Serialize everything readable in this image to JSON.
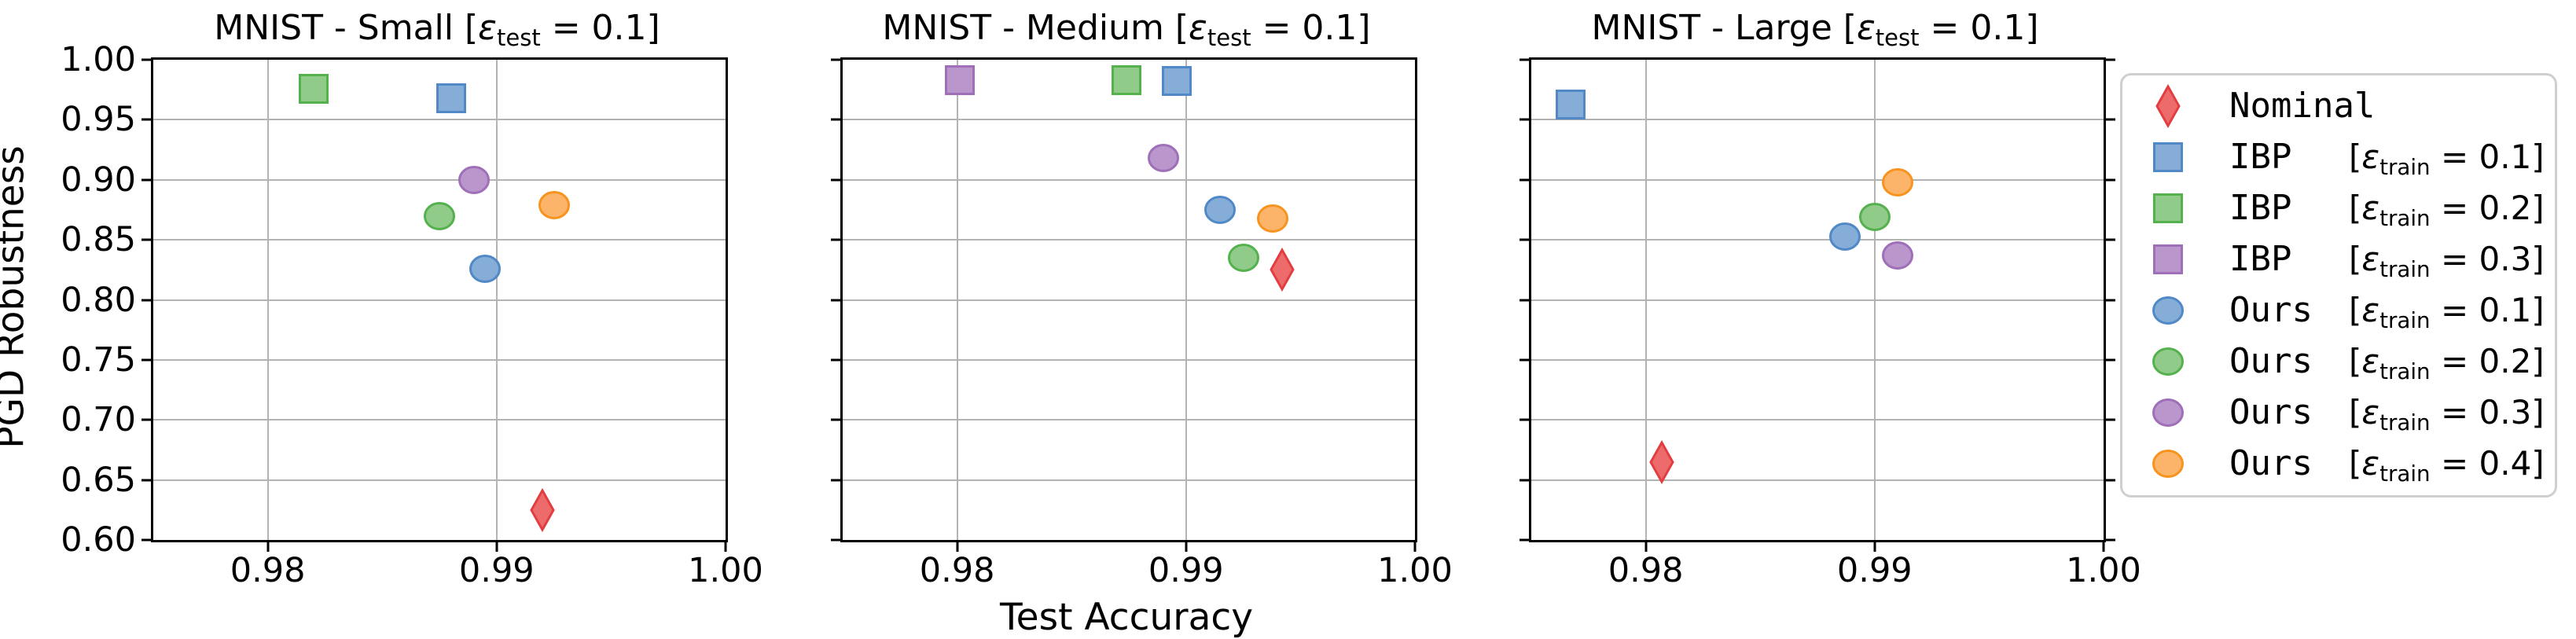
{
  "axes": {
    "xlabel": "Test Accuracy",
    "ylabel": "PGD Robustness"
  },
  "colors": {
    "red": {
      "fill": "#EE6B6C",
      "edge": "#E23E41"
    },
    "blue": {
      "fill": "#85ADD8",
      "edge": "#5089C5"
    },
    "green": {
      "fill": "#90CB8A",
      "edge": "#55B14E"
    },
    "purple": {
      "fill": "#B996CC",
      "edge": "#9F6FB8"
    },
    "orange": {
      "fill": "#FBB469",
      "edge": "#F7941F"
    },
    "grid": "#b3b3b3",
    "spine": "#000000",
    "legend_border": "#cfcfcf"
  },
  "legend": {
    "items": [
      {
        "name": "Nominal",
        "marker": "diamond",
        "color": "red",
        "bracket": {
          "open": "",
          "eps": "",
          "sub": "",
          "rest": ""
        }
      },
      {
        "name": "IBP",
        "marker": "square",
        "color": "blue",
        "bracket": {
          "open": "[",
          "eps": "ε",
          "sub": "train",
          "rest": " = 0.1]"
        }
      },
      {
        "name": "IBP",
        "marker": "square",
        "color": "green",
        "bracket": {
          "open": "[",
          "eps": "ε",
          "sub": "train",
          "rest": " = 0.2]"
        }
      },
      {
        "name": "IBP",
        "marker": "square",
        "color": "purple",
        "bracket": {
          "open": "[",
          "eps": "ε",
          "sub": "train",
          "rest": " = 0.3]"
        }
      },
      {
        "name": "Ours",
        "marker": "circle",
        "color": "blue",
        "bracket": {
          "open": "[",
          "eps": "ε",
          "sub": "train",
          "rest": " = 0.1]"
        }
      },
      {
        "name": "Ours",
        "marker": "circle",
        "color": "green",
        "bracket": {
          "open": "[",
          "eps": "ε",
          "sub": "train",
          "rest": " = 0.2]"
        }
      },
      {
        "name": "Ours",
        "marker": "circle",
        "color": "purple",
        "bracket": {
          "open": "[",
          "eps": "ε",
          "sub": "train",
          "rest": " = 0.3]"
        }
      },
      {
        "name": "Ours",
        "marker": "circle",
        "color": "orange",
        "bracket": {
          "open": "[",
          "eps": "ε",
          "sub": "train",
          "rest": " = 0.4]"
        }
      }
    ]
  },
  "chart_data": [
    {
      "type": "scatter",
      "title": {
        "pre": "MNIST - Small [",
        "eps": "ε",
        "sub": "test",
        "rest": " = 0.1]"
      },
      "x_range": [
        0.975,
        1.0
      ],
      "y_range": [
        0.6,
        1.0
      ],
      "x_ticks": [
        {
          "v": 0.98,
          "label": "0.98"
        },
        {
          "v": 0.99,
          "label": "0.99"
        },
        {
          "v": 1.0,
          "label": "1.00"
        }
      ],
      "y_ticks": [
        {
          "v": 1.0,
          "label": "1.00"
        },
        {
          "v": 0.95,
          "label": "0.95"
        },
        {
          "v": 0.9,
          "label": "0.90"
        },
        {
          "v": 0.85,
          "label": "0.85"
        },
        {
          "v": 0.8,
          "label": "0.80"
        },
        {
          "v": 0.75,
          "label": "0.75"
        },
        {
          "v": 0.7,
          "label": "0.70"
        },
        {
          "v": 0.65,
          "label": "0.65"
        },
        {
          "v": 0.6,
          "label": "0.60"
        }
      ],
      "x_gridlines": [
        0.98,
        0.99
      ],
      "y_gridlines": [
        0.95,
        0.9,
        0.85,
        0.8,
        0.75,
        0.7,
        0.65
      ],
      "show_y_tick_labels": true,
      "y_ticks_right": false,
      "points": [
        {
          "series": "Nominal",
          "marker": "diamond",
          "color": "red",
          "x": 0.992,
          "y": 0.625
        },
        {
          "series": "IBP eps_train=0.1",
          "marker": "square",
          "color": "blue",
          "x": 0.988,
          "y": 0.968
        },
        {
          "series": "IBP eps_train=0.2",
          "marker": "square",
          "color": "green",
          "x": 0.982,
          "y": 0.9755
        },
        {
          "series": "Ours eps_train=0.1",
          "marker": "circle",
          "color": "blue",
          "x": 0.9895,
          "y": 0.826
        },
        {
          "series": "Ours eps_train=0.2",
          "marker": "circle",
          "color": "green",
          "x": 0.9875,
          "y": 0.87
        },
        {
          "series": "Ours eps_train=0.3",
          "marker": "circle",
          "color": "purple",
          "x": 0.989,
          "y": 0.9
        },
        {
          "series": "Ours eps_train=0.4",
          "marker": "circle",
          "color": "orange",
          "x": 0.9925,
          "y": 0.879
        }
      ]
    },
    {
      "type": "scatter",
      "title": {
        "pre": "MNIST - Medium [",
        "eps": "ε",
        "sub": "test",
        "rest": " = 0.1]"
      },
      "x_range": [
        0.975,
        1.0
      ],
      "y_range": [
        0.6,
        1.0
      ],
      "x_ticks": [
        {
          "v": 0.98,
          "label": "0.98"
        },
        {
          "v": 0.99,
          "label": "0.99"
        },
        {
          "v": 1.0,
          "label": "1.00"
        }
      ],
      "y_ticks": [
        {
          "v": 1.0,
          "label": "1.00"
        },
        {
          "v": 0.95,
          "label": "0.95"
        },
        {
          "v": 0.9,
          "label": "0.90"
        },
        {
          "v": 0.85,
          "label": "0.85"
        },
        {
          "v": 0.8,
          "label": "0.80"
        },
        {
          "v": 0.75,
          "label": "0.75"
        },
        {
          "v": 0.7,
          "label": "0.70"
        },
        {
          "v": 0.65,
          "label": "0.65"
        },
        {
          "v": 0.6,
          "label": "0.60"
        }
      ],
      "x_gridlines": [
        0.98,
        0.99
      ],
      "y_gridlines": [
        0.95,
        0.9,
        0.85,
        0.8,
        0.75,
        0.7,
        0.65
      ],
      "show_y_tick_labels": false,
      "y_ticks_right": false,
      "points": [
        {
          "series": "Nominal",
          "marker": "diamond",
          "color": "red",
          "x": 0.9942,
          "y": 0.825
        },
        {
          "series": "IBP eps_train=0.1",
          "marker": "square",
          "color": "blue",
          "x": 0.9896,
          "y": 0.982
        },
        {
          "series": "IBP eps_train=0.2",
          "marker": "square",
          "color": "green",
          "x": 0.9874,
          "y": 0.983
        },
        {
          "series": "IBP eps_train=0.3",
          "marker": "square",
          "color": "purple",
          "x": 0.9801,
          "y": 0.983
        },
        {
          "series": "Ours eps_train=0.1",
          "marker": "circle",
          "color": "blue",
          "x": 0.9915,
          "y": 0.875
        },
        {
          "series": "Ours eps_train=0.2",
          "marker": "circle",
          "color": "green",
          "x": 0.9925,
          "y": 0.835
        },
        {
          "series": "Ours eps_train=0.3",
          "marker": "circle",
          "color": "purple",
          "x": 0.989,
          "y": 0.918
        },
        {
          "series": "Ours eps_train=0.4",
          "marker": "circle",
          "color": "orange",
          "x": 0.9938,
          "y": 0.868
        }
      ]
    },
    {
      "type": "scatter",
      "title": {
        "pre": "MNIST - Large [",
        "eps": "ε",
        "sub": "test",
        "rest": " = 0.1]"
      },
      "x_range": [
        0.975,
        1.0
      ],
      "y_range": [
        0.6,
        1.0
      ],
      "x_ticks": [
        {
          "v": 0.98,
          "label": "0.98"
        },
        {
          "v": 0.99,
          "label": "0.99"
        },
        {
          "v": 1.0,
          "label": "1.00"
        }
      ],
      "y_ticks": [
        {
          "v": 1.0,
          "label": "1.00"
        },
        {
          "v": 0.95,
          "label": "0.95"
        },
        {
          "v": 0.9,
          "label": "0.90"
        },
        {
          "v": 0.85,
          "label": "0.85"
        },
        {
          "v": 0.8,
          "label": "0.80"
        },
        {
          "v": 0.75,
          "label": "0.75"
        },
        {
          "v": 0.7,
          "label": "0.70"
        },
        {
          "v": 0.65,
          "label": "0.65"
        },
        {
          "v": 0.6,
          "label": "0.60"
        }
      ],
      "x_gridlines": [
        0.98,
        0.99
      ],
      "y_gridlines": [
        0.95,
        0.9,
        0.85,
        0.8,
        0.75,
        0.7,
        0.65
      ],
      "show_y_tick_labels": false,
      "y_ticks_right": true,
      "points": [
        {
          "series": "Nominal",
          "marker": "diamond",
          "color": "red",
          "x": 0.9807,
          "y": 0.665
        },
        {
          "series": "IBP eps_train=0.1",
          "marker": "square",
          "color": "blue",
          "x": 0.9767,
          "y": 0.963
        },
        {
          "series": "Ours eps_train=0.1",
          "marker": "circle",
          "color": "blue",
          "x": 0.9887,
          "y": 0.853
        },
        {
          "series": "Ours eps_train=0.2",
          "marker": "circle",
          "color": "green",
          "x": 0.99,
          "y": 0.869
        },
        {
          "series": "Ours eps_train=0.3",
          "marker": "circle",
          "color": "purple",
          "x": 0.991,
          "y": 0.837
        },
        {
          "series": "Ours eps_train=0.4",
          "marker": "circle",
          "color": "orange",
          "x": 0.991,
          "y": 0.898
        }
      ]
    }
  ]
}
